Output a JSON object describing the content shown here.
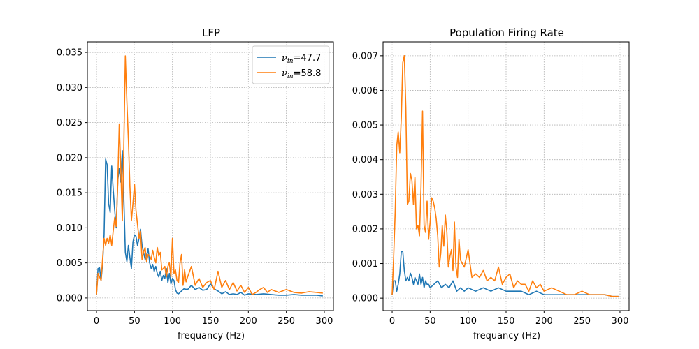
{
  "chart_data": [
    {
      "type": "line",
      "title": "LFP",
      "xlabel": "frequancy (Hz)",
      "ylabel": "",
      "xlim": [
        -12,
        312
      ],
      "ylim": [
        -0.0018,
        0.0365
      ],
      "xticks": [
        0,
        50,
        100,
        150,
        200,
        250,
        300
      ],
      "yticks": [
        0.0,
        0.005,
        0.01,
        0.015,
        0.02,
        0.025,
        0.03,
        0.035
      ],
      "ytick_labels": [
        "0.000",
        "0.005",
        "0.010",
        "0.015",
        "0.020",
        "0.025",
        "0.030",
        "0.035"
      ],
      "grid": true,
      "legend": "top-right",
      "series": [
        {
          "name": "νin=47.7",
          "legend_label": {
            "nu": "ν",
            "sub": "in",
            "value": "=47.7"
          },
          "color": "#1f77b4",
          "x": [
            0,
            2,
            4,
            6,
            8,
            10,
            12,
            14,
            16,
            18,
            20,
            22,
            24,
            26,
            28,
            30,
            32,
            34,
            36,
            38,
            40,
            42,
            44,
            46,
            48,
            50,
            52,
            54,
            56,
            58,
            60,
            62,
            64,
            66,
            68,
            70,
            72,
            74,
            76,
            78,
            80,
            82,
            84,
            86,
            88,
            90,
            92,
            94,
            96,
            98,
            100,
            102,
            104,
            106,
            108,
            110,
            115,
            120,
            125,
            130,
            135,
            140,
            145,
            150,
            155,
            160,
            165,
            170,
            175,
            180,
            185,
            190,
            195,
            200,
            210,
            220,
            230,
            240,
            250,
            260,
            270,
            280,
            290,
            298
          ],
          "y": [
            0.0004,
            0.0042,
            0.0043,
            0.0025,
            0.0048,
            0.009,
            0.0198,
            0.019,
            0.0135,
            0.0122,
            0.0188,
            0.0155,
            0.0125,
            0.01,
            0.0168,
            0.0185,
            0.0165,
            0.021,
            0.0145,
            0.0065,
            0.0052,
            0.0075,
            0.0058,
            0.0042,
            0.008,
            0.009,
            0.0088,
            0.0075,
            0.0085,
            0.0098,
            0.0075,
            0.0065,
            0.0055,
            0.006,
            0.007,
            0.005,
            0.0042,
            0.0048,
            0.0038,
            0.0045,
            0.0035,
            0.003,
            0.0038,
            0.0025,
            0.0032,
            0.0028,
            0.0042,
            0.0022,
            0.0035,
            0.002,
            0.0028,
            0.0025,
            0.0012,
            0.0007,
            0.0006,
            0.0008,
            0.0013,
            0.0012,
            0.0018,
            0.0012,
            0.0015,
            0.0011,
            0.0012,
            0.002,
            0.0013,
            0.001,
            0.0006,
            0.0009,
            0.0005,
            0.0006,
            0.0005,
            0.0008,
            0.0004,
            0.0006,
            0.0005,
            0.0006,
            0.0005,
            0.0004,
            0.0004,
            0.0005,
            0.0004,
            0.0004,
            0.0004,
            0.0003
          ]
        },
        {
          "name": "νin=58.8",
          "legend_label": {
            "nu": "ν",
            "sub": "in",
            "value": "=58.8"
          },
          "color": "#ff7f0e",
          "x": [
            0,
            2,
            4,
            6,
            8,
            10,
            12,
            14,
            16,
            18,
            20,
            22,
            24,
            26,
            28,
            30,
            32,
            34,
            36,
            38,
            40,
            42,
            44,
            46,
            48,
            50,
            52,
            54,
            56,
            58,
            60,
            62,
            64,
            66,
            68,
            70,
            72,
            74,
            76,
            78,
            80,
            82,
            84,
            86,
            88,
            90,
            92,
            94,
            96,
            98,
            100,
            102,
            104,
            106,
            108,
            110,
            112,
            114,
            116,
            118,
            120,
            125,
            130,
            135,
            140,
            145,
            150,
            155,
            160,
            165,
            170,
            175,
            180,
            185,
            190,
            195,
            200,
            205,
            210,
            215,
            220,
            225,
            230,
            240,
            250,
            260,
            270,
            280,
            290,
            298
          ],
          "y": [
            0.0005,
            0.0035,
            0.003,
            0.0025,
            0.0055,
            0.0085,
            0.0075,
            0.0085,
            0.0078,
            0.009,
            0.0075,
            0.0095,
            0.0115,
            0.0102,
            0.0165,
            0.0248,
            0.0185,
            0.011,
            0.0215,
            0.0345,
            0.028,
            0.0225,
            0.016,
            0.011,
            0.0135,
            0.0162,
            0.0125,
            0.0105,
            0.0085,
            0.0095,
            0.0055,
            0.0065,
            0.0072,
            0.0052,
            0.0062,
            0.006,
            0.0055,
            0.0068,
            0.0058,
            0.005,
            0.0072,
            0.006,
            0.0065,
            0.004,
            0.0042,
            0.0045,
            0.003,
            0.0045,
            0.005,
            0.003,
            0.0085,
            0.0035,
            0.004,
            0.0025,
            0.0022,
            0.005,
            0.0062,
            0.0018,
            0.004,
            0.0023,
            0.003,
            0.0045,
            0.0018,
            0.0028,
            0.0015,
            0.0022,
            0.0025,
            0.0012,
            0.0038,
            0.0015,
            0.0025,
            0.0012,
            0.0022,
            0.001,
            0.0018,
            0.0008,
            0.0015,
            0.0005,
            0.0008,
            0.0012,
            0.0015,
            0.0008,
            0.0012,
            0.0008,
            0.0012,
            0.0008,
            0.0007,
            0.0009,
            0.0008,
            0.0007
          ]
        }
      ]
    },
    {
      "type": "line",
      "title": "Population Firing Rate",
      "xlabel": "frequancy (Hz)",
      "ylabel": "",
      "xlim": [
        -12,
        312
      ],
      "ylim": [
        -0.00036,
        0.0074
      ],
      "xticks": [
        0,
        50,
        100,
        150,
        200,
        250,
        300
      ],
      "yticks": [
        0.0,
        0.001,
        0.002,
        0.003,
        0.004,
        0.005,
        0.006,
        0.007
      ],
      "ytick_labels": [
        "0.000",
        "0.001",
        "0.002",
        "0.003",
        "0.004",
        "0.005",
        "0.006",
        "0.007"
      ],
      "grid": true,
      "legend": "none",
      "series": [
        {
          "color": "#1f77b4",
          "x": [
            0,
            2,
            4,
            6,
            8,
            10,
            12,
            14,
            16,
            18,
            20,
            22,
            24,
            26,
            28,
            30,
            32,
            34,
            36,
            38,
            40,
            42,
            44,
            46,
            48,
            50,
            55,
            60,
            65,
            70,
            75,
            80,
            85,
            90,
            95,
            100,
            110,
            120,
            130,
            140,
            150,
            160,
            170,
            180,
            190,
            200,
            210,
            220,
            230,
            240,
            250,
            260,
            270,
            280,
            290,
            298
          ],
          "y": [
            0.0001,
            0.0005,
            0.0005,
            0.0002,
            0.0004,
            0.0007,
            0.00135,
            0.00135,
            0.0008,
            0.0005,
            0.0006,
            0.0005,
            0.00072,
            0.0006,
            0.0004,
            0.0006,
            0.0005,
            0.0004,
            0.0007,
            0.0004,
            0.0006,
            0.0003,
            0.0005,
            0.0004,
            0.0004,
            0.0003,
            0.0004,
            0.0005,
            0.0003,
            0.0004,
            0.0003,
            0.0005,
            0.0002,
            0.0003,
            0.0002,
            0.0003,
            0.0002,
            0.0003,
            0.0002,
            0.0003,
            0.0002,
            0.0002,
            0.0002,
            0.0001,
            0.0002,
            0.0001,
            0.0001,
            0.0001,
            0.0001,
            0.0001,
            0.0001,
            0.0001,
            0.0001,
            0.0001,
            5e-05,
            5e-05
          ]
        },
        {
          "color": "#ff7f0e",
          "x": [
            0,
            2,
            4,
            6,
            8,
            10,
            12,
            14,
            16,
            18,
            20,
            22,
            24,
            26,
            28,
            30,
            32,
            34,
            36,
            38,
            40,
            42,
            44,
            46,
            48,
            50,
            52,
            54,
            56,
            58,
            60,
            62,
            64,
            66,
            68,
            70,
            72,
            74,
            76,
            78,
            80,
            82,
            84,
            86,
            88,
            90,
            95,
            100,
            105,
            110,
            115,
            120,
            125,
            130,
            135,
            140,
            145,
            150,
            155,
            160,
            165,
            170,
            175,
            180,
            185,
            190,
            195,
            200,
            210,
            220,
            230,
            240,
            250,
            260,
            270,
            280,
            290,
            298
          ],
          "y": [
            0.0001,
            0.0012,
            0.0025,
            0.0044,
            0.0048,
            0.0042,
            0.0052,
            0.0068,
            0.007,
            0.0055,
            0.0027,
            0.0028,
            0.0036,
            0.0034,
            0.0027,
            0.0035,
            0.002,
            0.0021,
            0.0018,
            0.0032,
            0.0054,
            0.0021,
            0.0019,
            0.0028,
            0.0017,
            0.0022,
            0.0029,
            0.0028,
            0.0026,
            0.0023,
            0.0018,
            0.0009,
            0.0013,
            0.0021,
            0.0015,
            0.0024,
            0.0019,
            0.0009,
            0.0012,
            0.0014,
            0.0008,
            0.0022,
            0.0009,
            0.0006,
            0.0017,
            0.0011,
            0.0009,
            0.0014,
            0.0006,
            0.0007,
            0.0006,
            0.0008,
            0.0005,
            0.0006,
            0.0005,
            0.0009,
            0.0004,
            0.0006,
            0.0007,
            0.0003,
            0.0005,
            0.0004,
            0.0004,
            0.0002,
            0.0005,
            0.0003,
            0.0004,
            0.0002,
            0.0003,
            0.0002,
            0.0001,
            0.0001,
            0.0002,
            0.0001,
            0.0001,
            0.0001,
            5e-05,
            5e-05
          ]
        }
      ]
    }
  ]
}
